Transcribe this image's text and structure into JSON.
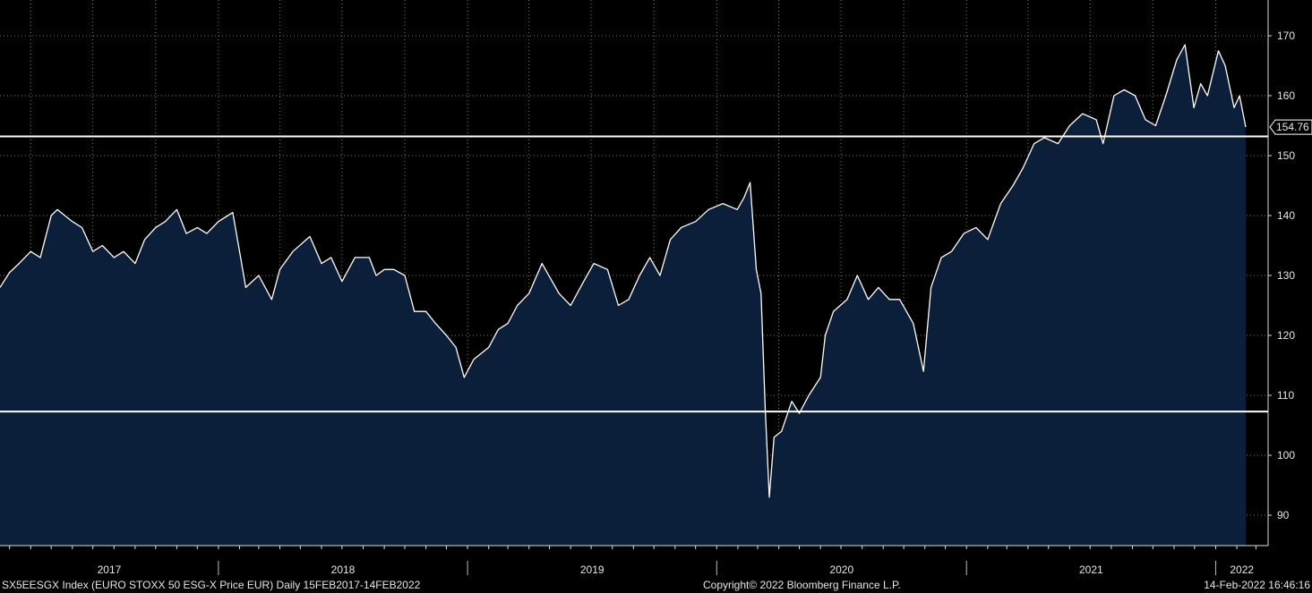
{
  "footer": {
    "left": "SX5EESGX Index (EURO STOXX 50 ESG-X Price EUR)  Daily 15FEB2017-14FEB2022",
    "center": "Copyright© 2022 Bloomberg Finance L.P.",
    "right": "14-Feb-2022 16:46:16"
  },
  "colors": {
    "background": "#000000",
    "area_fill": "#0b1e3a",
    "line": "#ffffff",
    "grid": "#7a7a7a"
  },
  "chart_data": {
    "type": "area",
    "title": "",
    "xlabel": "",
    "ylabel": "",
    "x_range": [
      "2017-02-15",
      "2022-02-14"
    ],
    "ylim": [
      85,
      175
    ],
    "y_ticks": [
      90,
      100,
      110,
      120,
      130,
      140,
      150,
      160,
      170
    ],
    "year_labels": [
      "2017",
      "2018",
      "2019",
      "2020",
      "2021",
      "2022"
    ],
    "last_value_label": "154.76",
    "grid": true,
    "horizontal_lines": [
      153.2,
      107.3
    ],
    "series": [
      {
        "values": [
          [
            "2017-02-15",
            128
          ],
          [
            "2017-03-01",
            130.5
          ],
          [
            "2017-03-15",
            132
          ],
          [
            "2017-04-01",
            134
          ],
          [
            "2017-04-15",
            133
          ],
          [
            "2017-05-01",
            140
          ],
          [
            "2017-05-10",
            141
          ],
          [
            "2017-06-01",
            139
          ],
          [
            "2017-06-15",
            138
          ],
          [
            "2017-07-01",
            134
          ],
          [
            "2017-07-15",
            135
          ],
          [
            "2017-08-01",
            133
          ],
          [
            "2017-08-15",
            134
          ],
          [
            "2017-09-01",
            132
          ],
          [
            "2017-09-15",
            136
          ],
          [
            "2017-10-01",
            138
          ],
          [
            "2017-10-15",
            139
          ],
          [
            "2017-11-01",
            141
          ],
          [
            "2017-11-15",
            137
          ],
          [
            "2017-12-01",
            138
          ],
          [
            "2017-12-15",
            137
          ],
          [
            "2018-01-01",
            139
          ],
          [
            "2018-01-22",
            140.5
          ],
          [
            "2018-02-01",
            134
          ],
          [
            "2018-02-10",
            128
          ],
          [
            "2018-03-01",
            130
          ],
          [
            "2018-03-20",
            126
          ],
          [
            "2018-04-01",
            131
          ],
          [
            "2018-04-20",
            134
          ],
          [
            "2018-05-15",
            136.5
          ],
          [
            "2018-06-01",
            132
          ],
          [
            "2018-06-15",
            133
          ],
          [
            "2018-07-01",
            129
          ],
          [
            "2018-07-20",
            133
          ],
          [
            "2018-08-10",
            133
          ],
          [
            "2018-08-20",
            130
          ],
          [
            "2018-09-01",
            131
          ],
          [
            "2018-09-15",
            131
          ],
          [
            "2018-10-01",
            130
          ],
          [
            "2018-10-15",
            124
          ],
          [
            "2018-11-01",
            124
          ],
          [
            "2018-11-15",
            122
          ],
          [
            "2018-12-01",
            120
          ],
          [
            "2018-12-15",
            118
          ],
          [
            "2018-12-27",
            113
          ],
          [
            "2019-01-10",
            116
          ],
          [
            "2019-02-01",
            118
          ],
          [
            "2019-02-15",
            121
          ],
          [
            "2019-03-01",
            122
          ],
          [
            "2019-03-15",
            125
          ],
          [
            "2019-04-01",
            127
          ],
          [
            "2019-04-20",
            132
          ],
          [
            "2019-05-15",
            127
          ],
          [
            "2019-06-01",
            125
          ],
          [
            "2019-06-20",
            129
          ],
          [
            "2019-07-05",
            132
          ],
          [
            "2019-07-25",
            131
          ],
          [
            "2019-08-10",
            125
          ],
          [
            "2019-08-25",
            126
          ],
          [
            "2019-09-10",
            130
          ],
          [
            "2019-09-25",
            133
          ],
          [
            "2019-10-10",
            130
          ],
          [
            "2019-10-25",
            136
          ],
          [
            "2019-11-10",
            138
          ],
          [
            "2019-12-01",
            139
          ],
          [
            "2019-12-20",
            141
          ],
          [
            "2020-01-10",
            142
          ],
          [
            "2020-01-31",
            141
          ],
          [
            "2020-02-10",
            143
          ],
          [
            "2020-02-19",
            145.5
          ],
          [
            "2020-02-28",
            131
          ],
          [
            "2020-03-06",
            127
          ],
          [
            "2020-03-12",
            108
          ],
          [
            "2020-03-18",
            93
          ],
          [
            "2020-03-25",
            103
          ],
          [
            "2020-04-05",
            104
          ],
          [
            "2020-04-20",
            109
          ],
          [
            "2020-05-01",
            107
          ],
          [
            "2020-05-15",
            110
          ],
          [
            "2020-06-01",
            113
          ],
          [
            "2020-06-08",
            120
          ],
          [
            "2020-06-20",
            124
          ],
          [
            "2020-07-10",
            126
          ],
          [
            "2020-07-25",
            130
          ],
          [
            "2020-08-10",
            126
          ],
          [
            "2020-08-25",
            128
          ],
          [
            "2020-09-10",
            126
          ],
          [
            "2020-09-25",
            126
          ],
          [
            "2020-10-15",
            122
          ],
          [
            "2020-10-30",
            114
          ],
          [
            "2020-11-10",
            128
          ],
          [
            "2020-11-25",
            133
          ],
          [
            "2020-12-10",
            134
          ],
          [
            "2020-12-28",
            137
          ],
          [
            "2021-01-15",
            138
          ],
          [
            "2021-02-01",
            136
          ],
          [
            "2021-02-20",
            142
          ],
          [
            "2021-03-10",
            145
          ],
          [
            "2021-03-25",
            148
          ],
          [
            "2021-04-10",
            152
          ],
          [
            "2021-04-25",
            153
          ],
          [
            "2021-05-15",
            152
          ],
          [
            "2021-06-01",
            155
          ],
          [
            "2021-06-20",
            157
          ],
          [
            "2021-07-10",
            156
          ],
          [
            "2021-07-20",
            152
          ],
          [
            "2021-08-05",
            160
          ],
          [
            "2021-08-20",
            161
          ],
          [
            "2021-09-05",
            160
          ],
          [
            "2021-09-20",
            156
          ],
          [
            "2021-10-05",
            155
          ],
          [
            "2021-10-20",
            160
          ],
          [
            "2021-11-05",
            166
          ],
          [
            "2021-11-17",
            168.5
          ],
          [
            "2021-11-30",
            158
          ],
          [
            "2021-12-10",
            162
          ],
          [
            "2021-12-20",
            160
          ],
          [
            "2022-01-05",
            167.5
          ],
          [
            "2022-01-15",
            165
          ],
          [
            "2022-01-28",
            158
          ],
          [
            "2022-02-05",
            160
          ],
          [
            "2022-02-14",
            154.76
          ]
        ]
      }
    ]
  }
}
